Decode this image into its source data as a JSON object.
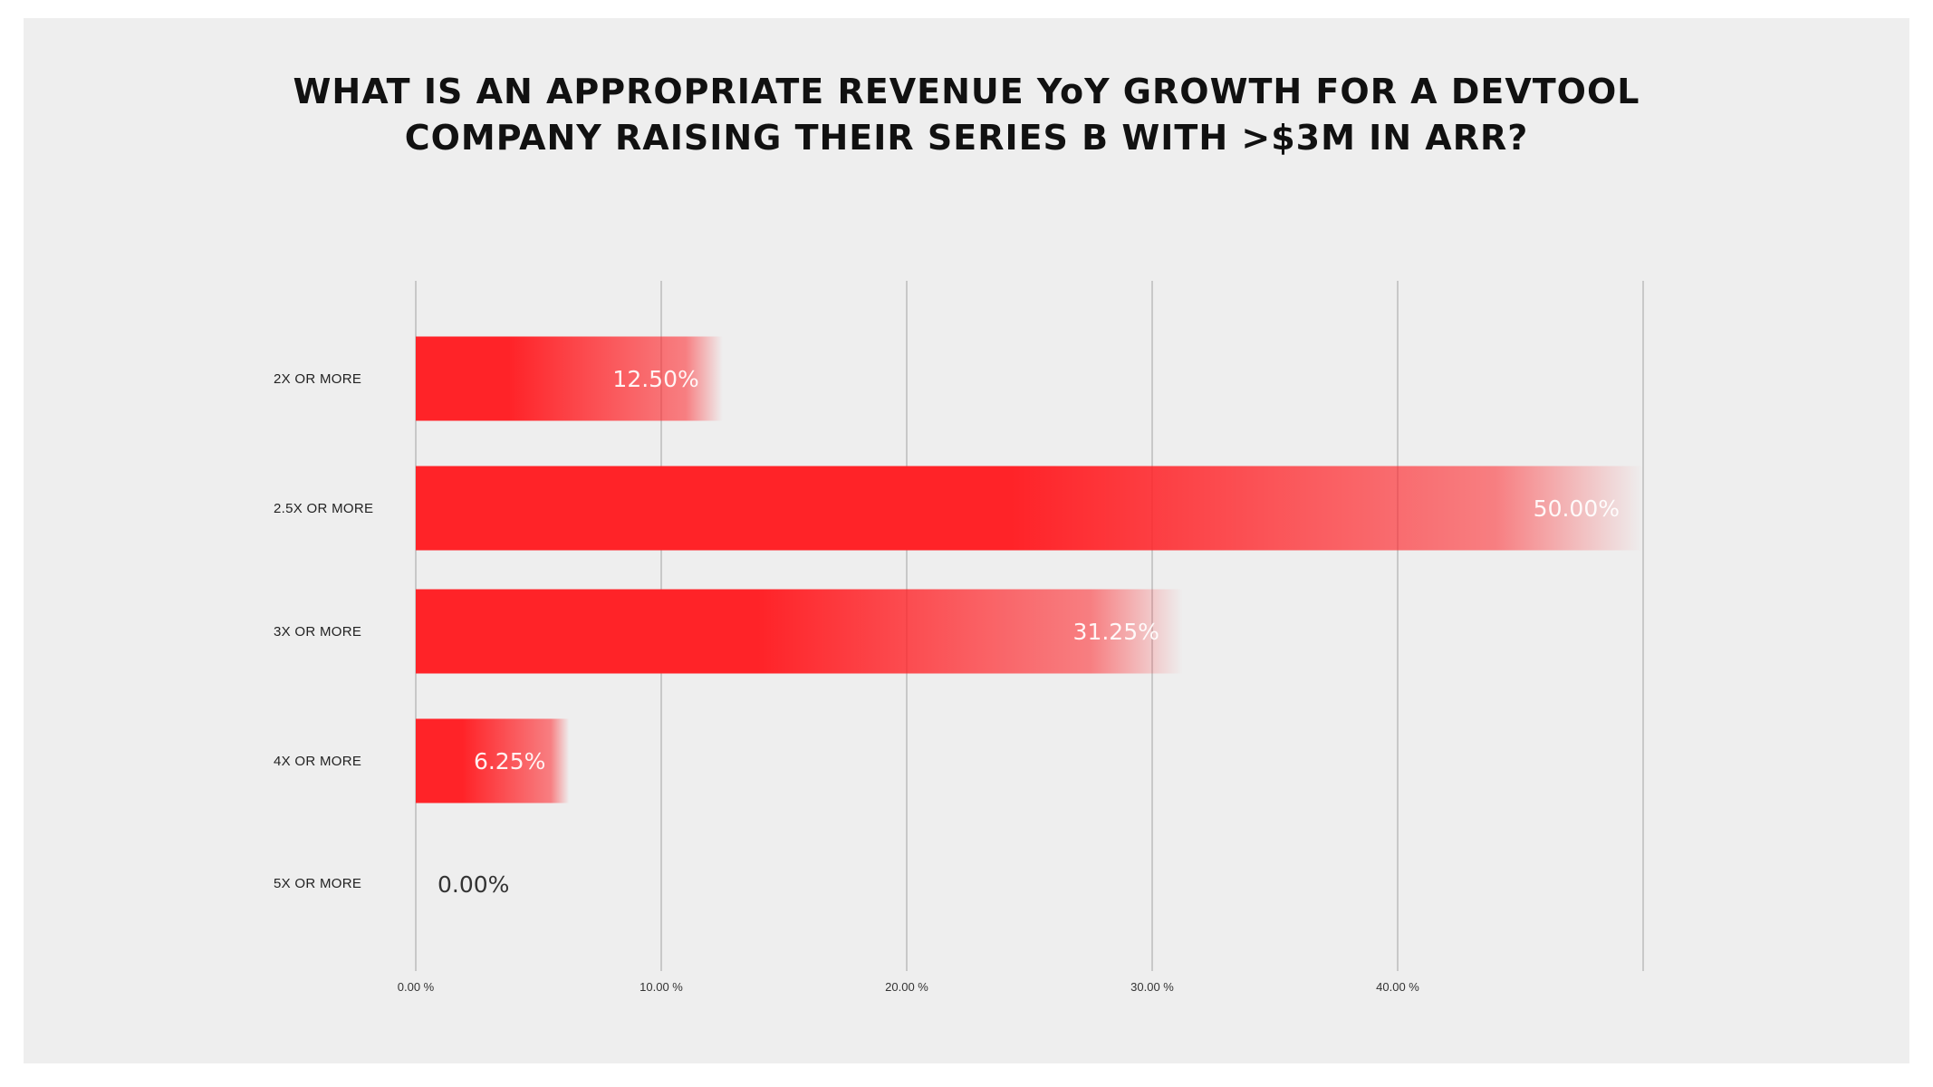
{
  "colors": {
    "bar": "#ff2328",
    "background": "#eeeeee",
    "grid": "#b0b0b0"
  },
  "chart_data": {
    "type": "bar",
    "orientation": "horizontal",
    "title_lines": [
      "WHAT IS AN APPROPRIATE REVENUE YoY GROWTH FOR A DEVTOOL",
      "COMPANY RAISING THEIR SERIES B WITH >$3M IN ARR?"
    ],
    "categories": [
      "2X OR MORE",
      "2.5X OR MORE",
      "3X OR MORE",
      "4X OR MORE",
      "5X OR MORE"
    ],
    "values": [
      12.5,
      50.0,
      31.25,
      6.25,
      0.0
    ],
    "value_labels": [
      "12.50%",
      "50.00%",
      "31.25%",
      "6.25%",
      "0.00%"
    ],
    "xlim": [
      0,
      50
    ],
    "xticks": [
      0,
      10,
      20,
      30,
      40,
      50
    ],
    "xtick_labels": [
      "0.00 %",
      "10.00 %",
      "20.00 %",
      "30.00 %",
      "40.00 %",
      ""
    ],
    "grid": true,
    "legend": "none"
  }
}
